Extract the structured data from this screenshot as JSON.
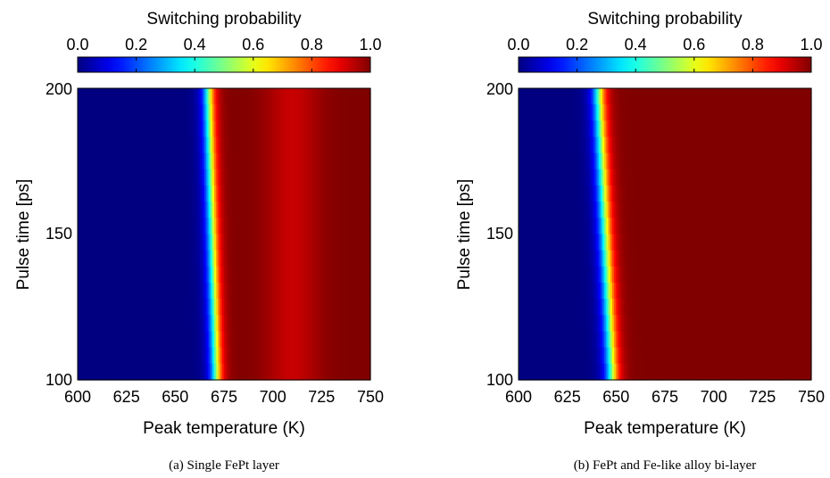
{
  "chart_data": [
    {
      "type": "heatmap",
      "caption": "(a) Single FePt layer",
      "colorbar": {
        "title": "Switching probability",
        "range": [
          0.0,
          1.0
        ],
        "ticks": [
          "0.0",
          "0.2",
          "0.4",
          "0.6",
          "0.8",
          "1.0"
        ]
      },
      "xlabel": "Peak temperature (K)",
      "ylabel": "Pulse time [ps]",
      "xlim": [
        600,
        750
      ],
      "ylim": [
        100,
        200
      ],
      "xticks": [
        "600",
        "625",
        "650",
        "675",
        "700",
        "725",
        "750"
      ],
      "yticks": [
        "100",
        "150",
        "200"
      ],
      "transition": {
        "center_temperature_at_pulse": [
          {
            "pulse": 100,
            "T": 671
          },
          {
            "pulse": 200,
            "T": 667
          }
        ],
        "width_K": 9,
        "high_T_dip": {
          "T": 710,
          "value": 0.93
        }
      }
    },
    {
      "type": "heatmap",
      "caption": "(b) FePt and Fe-like alloy bi-layer",
      "colorbar": {
        "title": "Switching probability",
        "range": [
          0.0,
          1.0
        ],
        "ticks": [
          "0.0",
          "0.2",
          "0.4",
          "0.6",
          "0.8",
          "1.0"
        ]
      },
      "xlabel": "Peak temperature (K)",
      "ylabel": "Pulse time [ps]",
      "xlim": [
        600,
        750
      ],
      "ylim": [
        100,
        200
      ],
      "xticks": [
        "600",
        "625",
        "650",
        "675",
        "700",
        "725",
        "750"
      ],
      "yticks": [
        "100",
        "150",
        "200"
      ],
      "transition": {
        "center_temperature_at_pulse": [
          {
            "pulse": 100,
            "T": 648
          },
          {
            "pulse": 200,
            "T": 641
          }
        ],
        "width_K": 10,
        "high_T_dip": null
      }
    }
  ]
}
